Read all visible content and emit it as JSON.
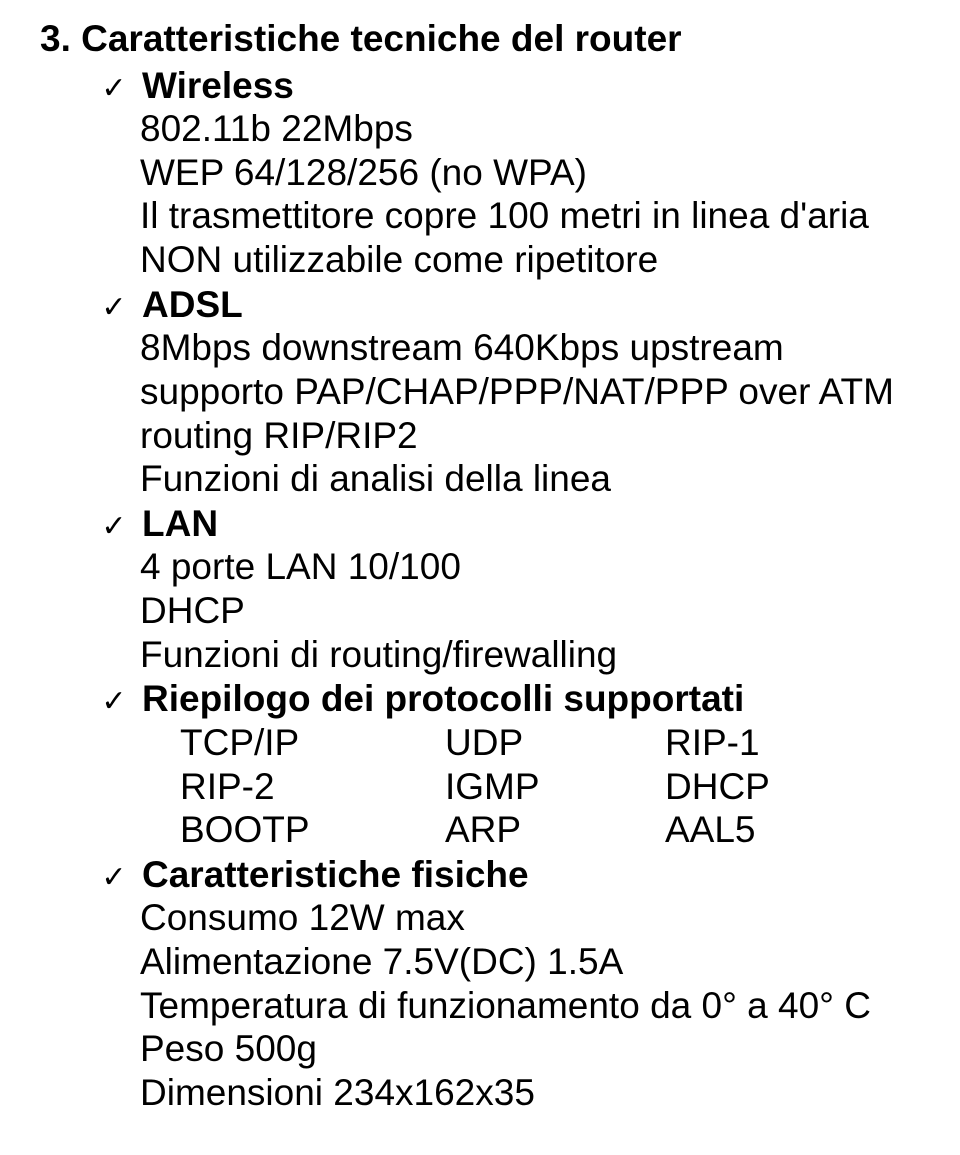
{
  "heading": "3. Caratteristiche tecniche del router",
  "checkmark": "✓",
  "wireless": {
    "title": "Wireless",
    "lines": [
      "802.11b 22Mbps",
      "WEP 64/128/256 (no WPA)",
      "Il trasmettitore copre 100 metri in linea d'aria",
      "NON utilizzabile come ripetitore"
    ]
  },
  "adsl": {
    "title": "ADSL",
    "lines": [
      "8Mbps downstream 640Kbps upstream",
      "supporto PAP/CHAP/PPP/NAT/PPP over ATM",
      "routing RIP/RIP2",
      "Funzioni di analisi della linea"
    ]
  },
  "lan": {
    "title": "LAN",
    "lines": [
      "4 porte LAN 10/100",
      "DHCP",
      "Funzioni di routing/firewalling"
    ]
  },
  "protocols": {
    "title": "Riepilogo dei protocolli supportati",
    "rows": [
      [
        "TCP/IP",
        "UDP",
        "RIP-1"
      ],
      [
        "RIP-2",
        "IGMP",
        "DHCP"
      ],
      [
        "BOOTP",
        "ARP",
        "AAL5"
      ]
    ]
  },
  "physical": {
    "title": "Caratteristiche fisiche",
    "lines": [
      "Consumo 12W max",
      "Alimentazione 7.5V(DC) 1.5A",
      "Temperatura di funzionamento da 0° a 40° C",
      "Peso 500g",
      "Dimensioni 234x162x35"
    ]
  }
}
